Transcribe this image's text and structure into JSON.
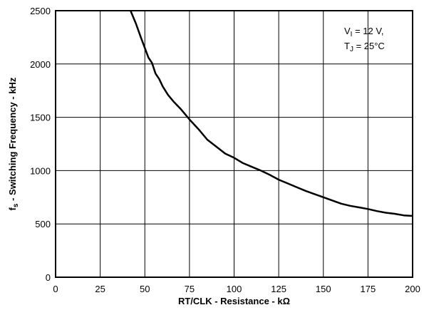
{
  "chart_data": {
    "type": "line",
    "title": "",
    "xlabel_parts": [
      "RT/CLK - Resistance - k",
      "Ω"
    ],
    "ylabel_parts": [
      "f",
      "s",
      " - Switching Frequency - kHz"
    ],
    "xlim": [
      0,
      200
    ],
    "ylim": [
      0,
      2500
    ],
    "x_ticks": [
      0,
      25,
      50,
      75,
      100,
      125,
      150,
      175,
      200
    ],
    "y_ticks": [
      0,
      500,
      1000,
      1500,
      2000,
      2500
    ],
    "grid": true,
    "annotation": {
      "line1": {
        "main": "V",
        "sub": "I",
        "rest": " = 12 V,"
      },
      "line2": {
        "main": "T",
        "sub": "J",
        "rest": " = 25°C"
      }
    },
    "series": [
      {
        "x": [
          42,
          45,
          48,
          50,
          52,
          54,
          56,
          58,
          60,
          63,
          66,
          70,
          75,
          80,
          85,
          90,
          95,
          100,
          105,
          110,
          115,
          120,
          125,
          130,
          135,
          140,
          145,
          150,
          155,
          160,
          165,
          170,
          175,
          180,
          185,
          190,
          195,
          200
        ],
        "y": [
          2500,
          2380,
          2240,
          2150,
          2060,
          2010,
          1910,
          1860,
          1790,
          1710,
          1650,
          1580,
          1480,
          1390,
          1290,
          1225,
          1160,
          1120,
          1070,
          1035,
          1000,
          960,
          915,
          880,
          845,
          810,
          780,
          750,
          720,
          690,
          670,
          655,
          640,
          620,
          605,
          595,
          580,
          575
        ]
      }
    ]
  }
}
